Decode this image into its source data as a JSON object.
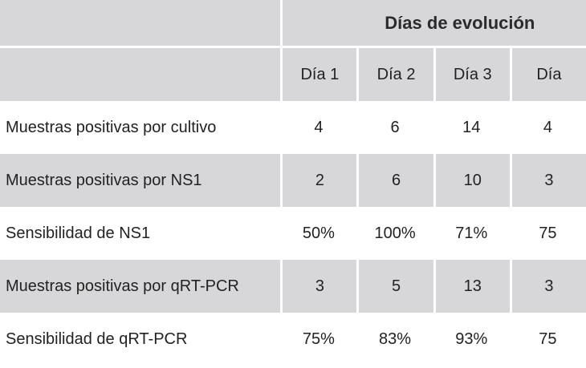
{
  "table": {
    "title": "Días de evolución",
    "days": [
      "Día 1",
      "Día 2",
      "Día 3",
      "Día"
    ],
    "rows": [
      {
        "label": "Muestras positivas por cultivo",
        "values": [
          "4",
          "6",
          "14",
          "4"
        ]
      },
      {
        "label": "Muestras positivas por NS1",
        "values": [
          "2",
          "6",
          "10",
          "3"
        ]
      },
      {
        "label": "Sensibilidad de NS1",
        "values": [
          "50%",
          "100%",
          "71%",
          "75"
        ]
      },
      {
        "label": "Muestras positivas por qRT-PCR",
        "values": [
          "3",
          "5",
          "13",
          "3"
        ]
      },
      {
        "label": "Sensibilidad de qRT-PCR",
        "values": [
          "75%",
          "83%",
          "93%",
          "75"
        ]
      }
    ]
  },
  "colors": {
    "shaded_row": "#d7d7d9",
    "separator": "#ffffff",
    "text": "#222222"
  }
}
